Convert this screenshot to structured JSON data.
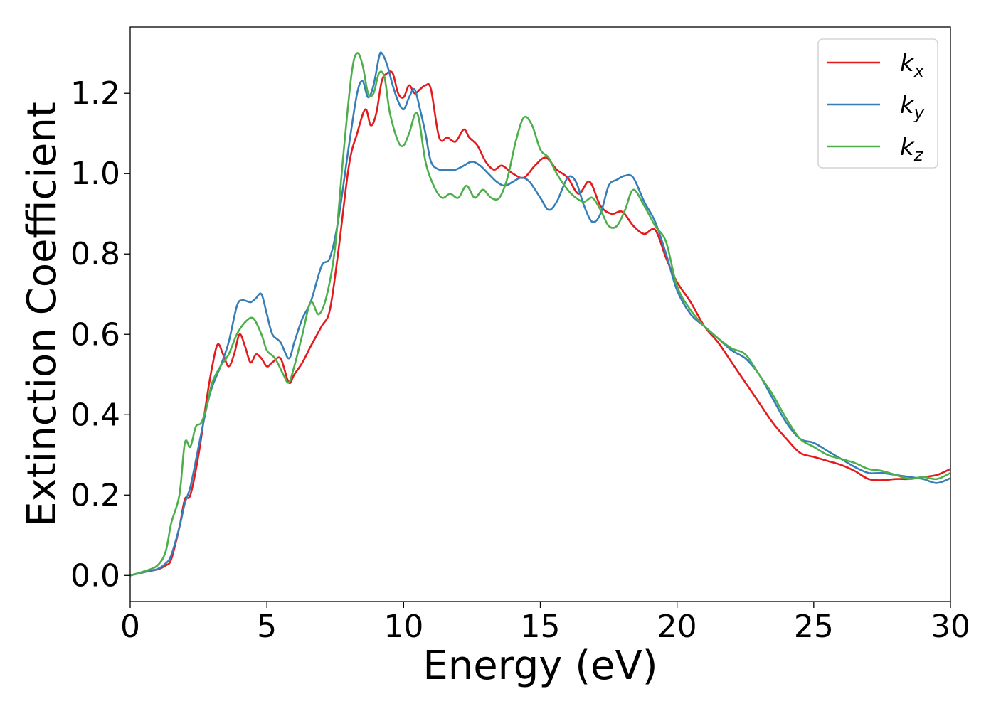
{
  "chart_data": {
    "type": "line",
    "xlabel": "Energy (eV)",
    "ylabel": "Extinction Coefficient",
    "xlim": [
      0,
      30
    ],
    "ylim": [
      -0.065,
      1.365
    ],
    "xticks": [
      0,
      5,
      10,
      15,
      20,
      25,
      30
    ],
    "xtick_labels": [
      "0",
      "5",
      "10",
      "15",
      "20",
      "25",
      "30"
    ],
    "yticks": [
      0.0,
      0.2,
      0.4,
      0.6,
      0.8,
      1.0,
      1.2
    ],
    "ytick_labels": [
      "0.0",
      "0.2",
      "0.4",
      "0.6",
      "0.8",
      "1.0",
      "1.2"
    ],
    "grid": false,
    "legend_position": "top-right",
    "series": [
      {
        "name": "k_x",
        "label_main": "k",
        "label_sub": "x",
        "color": "#e41a1c",
        "x": [
          0,
          0.5,
          1,
          1.3,
          1.5,
          1.8,
          2,
          2.2,
          2.5,
          2.8,
          3,
          3.2,
          3.4,
          3.6,
          3.8,
          4,
          4.2,
          4.4,
          4.6,
          4.8,
          5,
          5.2,
          5.5,
          5.8,
          6,
          6.3,
          6.6,
          7,
          7.3,
          7.6,
          8,
          8.3,
          8.6,
          8.8,
          9,
          9.2,
          9.4,
          9.6,
          9.8,
          10,
          10.2,
          10.4,
          10.6,
          10.8,
          11,
          11.3,
          11.6,
          11.9,
          12.2,
          12.4,
          12.7,
          13,
          13.3,
          13.6,
          14,
          14.4,
          14.8,
          15.2,
          15.6,
          16,
          16.4,
          16.8,
          17.2,
          17.6,
          18,
          18.4,
          18.8,
          19.2,
          19.6,
          20,
          20.5,
          21,
          21.5,
          22,
          22.5,
          23,
          23.5,
          24,
          24.5,
          25,
          25.5,
          26,
          26.5,
          27,
          27.5,
          28,
          28.5,
          29,
          29.5,
          30
        ],
        "y": [
          0,
          0.008,
          0.015,
          0.025,
          0.04,
          0.12,
          0.19,
          0.2,
          0.3,
          0.44,
          0.52,
          0.575,
          0.55,
          0.52,
          0.55,
          0.6,
          0.57,
          0.53,
          0.55,
          0.54,
          0.52,
          0.53,
          0.54,
          0.48,
          0.5,
          0.53,
          0.57,
          0.62,
          0.66,
          0.8,
          1.02,
          1.1,
          1.16,
          1.12,
          1.15,
          1.23,
          1.25,
          1.25,
          1.2,
          1.19,
          1.22,
          1.2,
          1.21,
          1.22,
          1.21,
          1.09,
          1.09,
          1.08,
          1.11,
          1.09,
          1.07,
          1.03,
          1.01,
          1.02,
          1,
          0.99,
          1.02,
          1.04,
          1.01,
          0.99,
          0.95,
          0.98,
          0.92,
          0.9,
          0.905,
          0.87,
          0.85,
          0.86,
          0.79,
          0.73,
          0.68,
          0.62,
          0.58,
          0.53,
          0.48,
          0.43,
          0.38,
          0.34,
          0.305,
          0.295,
          0.285,
          0.275,
          0.26,
          0.24,
          0.237,
          0.24,
          0.24,
          0.245,
          0.25,
          0.265
        ]
      },
      {
        "name": "k_y",
        "label_main": "k",
        "label_sub": "y",
        "color": "#377eb8",
        "x": [
          0,
          0.5,
          1,
          1.3,
          1.5,
          1.8,
          2,
          2.2,
          2.5,
          2.8,
          3,
          3.3,
          3.6,
          3.9,
          4.1,
          4.4,
          4.6,
          4.8,
          5,
          5.2,
          5.5,
          5.8,
          6,
          6.3,
          6.6,
          7,
          7.3,
          7.6,
          8,
          8.3,
          8.5,
          8.7,
          8.9,
          9.1,
          9.2,
          9.4,
          9.6,
          9.8,
          10,
          10.2,
          10.4,
          10.6,
          10.8,
          11,
          11.3,
          11.6,
          11.9,
          12.2,
          12.5,
          12.8,
          13.1,
          13.4,
          13.7,
          14,
          14.3,
          14.6,
          15,
          15.3,
          15.6,
          16,
          16.3,
          16.6,
          16.9,
          17.2,
          17.5,
          17.8,
          18.1,
          18.4,
          18.8,
          19.2,
          19.6,
          20,
          20.5,
          21,
          21.5,
          22,
          22.5,
          23,
          23.5,
          24,
          24.5,
          25,
          25.5,
          26,
          26.5,
          27,
          27.5,
          28,
          28.5,
          29,
          29.5,
          30
        ],
        "y": [
          0,
          0.008,
          0.016,
          0.03,
          0.05,
          0.12,
          0.18,
          0.22,
          0.32,
          0.42,
          0.47,
          0.52,
          0.58,
          0.67,
          0.685,
          0.68,
          0.69,
          0.7,
          0.65,
          0.6,
          0.58,
          0.54,
          0.58,
          0.64,
          0.68,
          0.77,
          0.79,
          0.88,
          1.07,
          1.2,
          1.23,
          1.19,
          1.22,
          1.29,
          1.3,
          1.27,
          1.22,
          1.18,
          1.16,
          1.19,
          1.21,
          1.16,
          1.1,
          1.03,
          1.01,
          1.01,
          1.01,
          1.02,
          1.03,
          1.02,
          1,
          0.98,
          0.97,
          0.98,
          0.99,
          0.98,
          0.94,
          0.91,
          0.93,
          0.99,
          0.98,
          0.92,
          0.88,
          0.9,
          0.97,
          0.985,
          0.995,
          0.99,
          0.93,
          0.88,
          0.8,
          0.71,
          0.65,
          0.62,
          0.59,
          0.56,
          0.54,
          0.5,
          0.44,
          0.38,
          0.34,
          0.33,
          0.31,
          0.29,
          0.27,
          0.255,
          0.255,
          0.25,
          0.245,
          0.24,
          0.23,
          0.242
        ]
      },
      {
        "name": "k_z",
        "label_main": "k",
        "label_sub": "z",
        "color": "#4daf4a",
        "x": [
          0,
          0.5,
          1,
          1.3,
          1.5,
          1.8,
          2,
          2.2,
          2.4,
          2.6,
          2.8,
          3,
          3.3,
          3.6,
          3.9,
          4.2,
          4.5,
          4.8,
          5,
          5.3,
          5.6,
          5.8,
          6,
          6.3,
          6.6,
          6.9,
          7.2,
          7.5,
          7.8,
          8.1,
          8.3,
          8.5,
          8.7,
          8.9,
          9.1,
          9.3,
          9.5,
          9.8,
          10,
          10.2,
          10.5,
          10.8,
          11.1,
          11.4,
          11.7,
          12,
          12.3,
          12.6,
          12.9,
          13.2,
          13.5,
          13.8,
          14.1,
          14.4,
          14.7,
          15,
          15.3,
          15.6,
          16,
          16.3,
          16.6,
          16.9,
          17.2,
          17.5,
          17.8,
          18.1,
          18.4,
          18.8,
          19.2,
          19.6,
          20,
          20.5,
          21,
          21.5,
          22,
          22.5,
          23,
          23.5,
          24,
          24.5,
          25,
          25.5,
          26,
          26.5,
          27,
          27.5,
          28,
          28.5,
          29,
          29.5,
          30
        ],
        "y": [
          0,
          0.01,
          0.025,
          0.06,
          0.13,
          0.2,
          0.33,
          0.32,
          0.37,
          0.38,
          0.42,
          0.48,
          0.52,
          0.55,
          0.6,
          0.63,
          0.64,
          0.6,
          0.56,
          0.54,
          0.5,
          0.48,
          0.52,
          0.6,
          0.68,
          0.65,
          0.7,
          0.82,
          1.05,
          1.25,
          1.3,
          1.27,
          1.2,
          1.2,
          1.25,
          1.24,
          1.15,
          1.08,
          1.07,
          1.1,
          1.15,
          1.03,
          0.97,
          0.94,
          0.95,
          0.94,
          0.97,
          0.94,
          0.96,
          0.94,
          0.94,
          0.99,
          1.08,
          1.14,
          1.12,
          1.06,
          1.04,
          1,
          0.96,
          0.94,
          0.93,
          0.94,
          0.91,
          0.87,
          0.87,
          0.91,
          0.96,
          0.92,
          0.87,
          0.83,
          0.72,
          0.66,
          0.62,
          0.59,
          0.565,
          0.55,
          0.5,
          0.45,
          0.39,
          0.34,
          0.32,
          0.3,
          0.29,
          0.28,
          0.265,
          0.26,
          0.25,
          0.24,
          0.245,
          0.24,
          0.255
        ]
      }
    ]
  }
}
